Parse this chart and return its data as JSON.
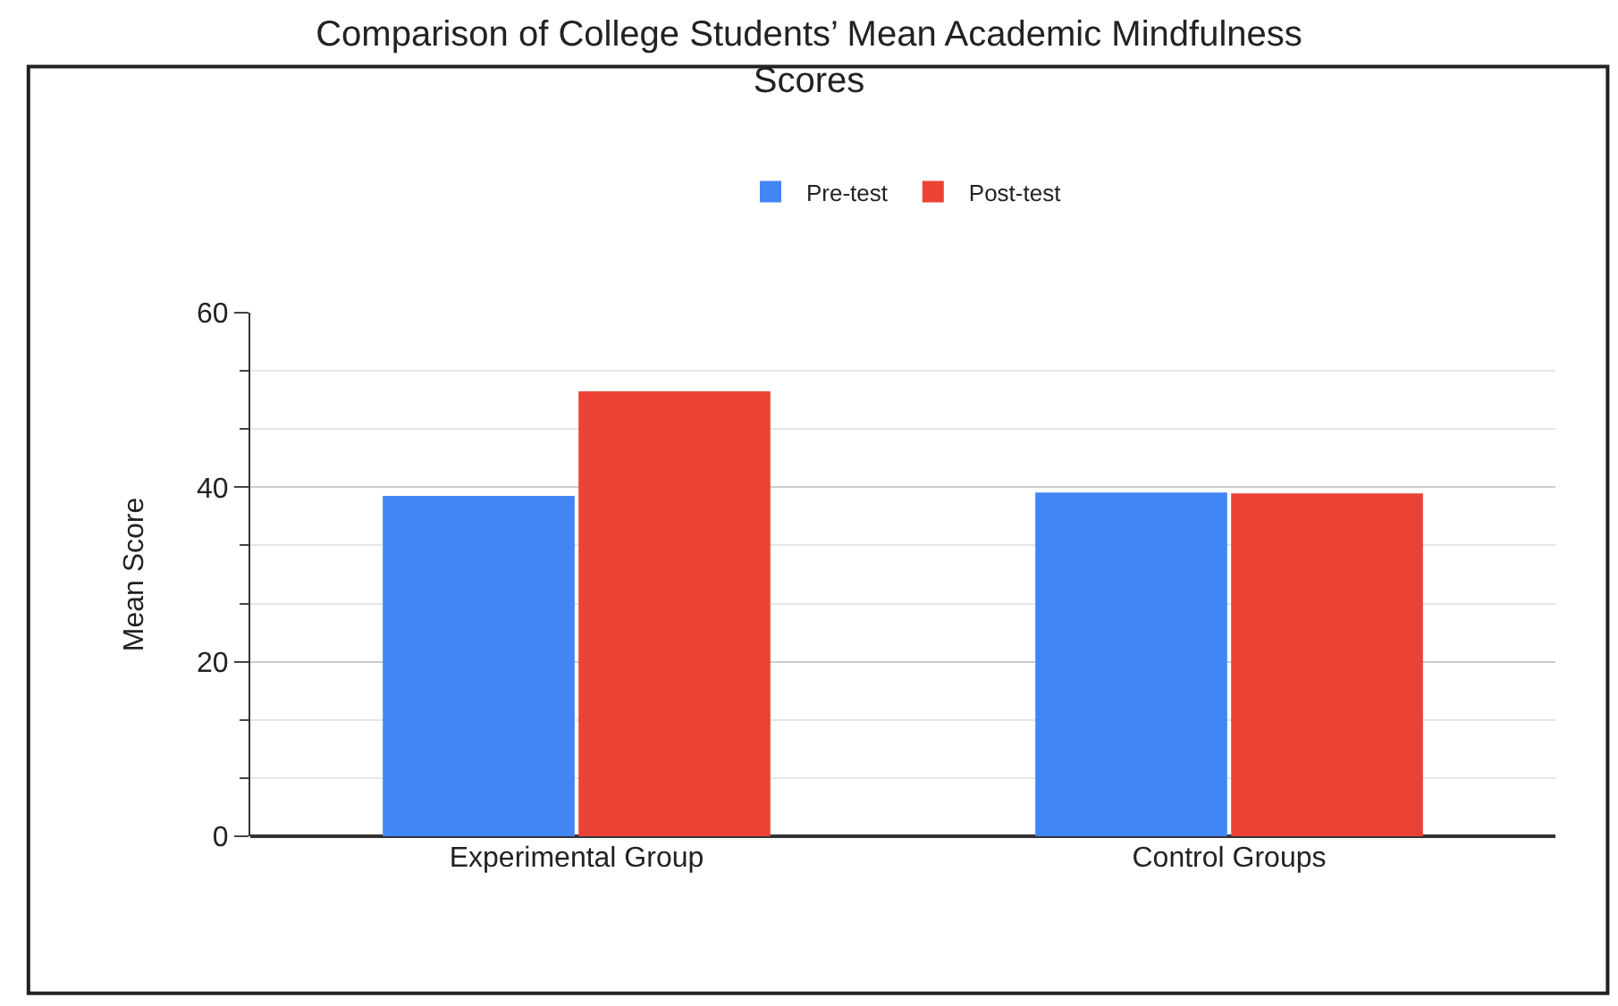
{
  "chart_data": {
    "type": "bar",
    "title": "Comparison of College Students’ Mean Academic Mindfulness Scores",
    "categories": [
      "Experimental Group",
      "Control Groups"
    ],
    "series": [
      {
        "name": "Pre-test",
        "color": "#4285f4",
        "values": [
          39,
          39.4
        ]
      },
      {
        "name": "Post-test",
        "color": "#ea4335",
        "values": [
          51,
          39.3
        ]
      }
    ],
    "ylabel": "Mean Score",
    "ylim": [
      0,
      60
    ],
    "yticks": [
      0,
      20,
      40,
      60
    ],
    "grid": true,
    "legend": "top"
  }
}
